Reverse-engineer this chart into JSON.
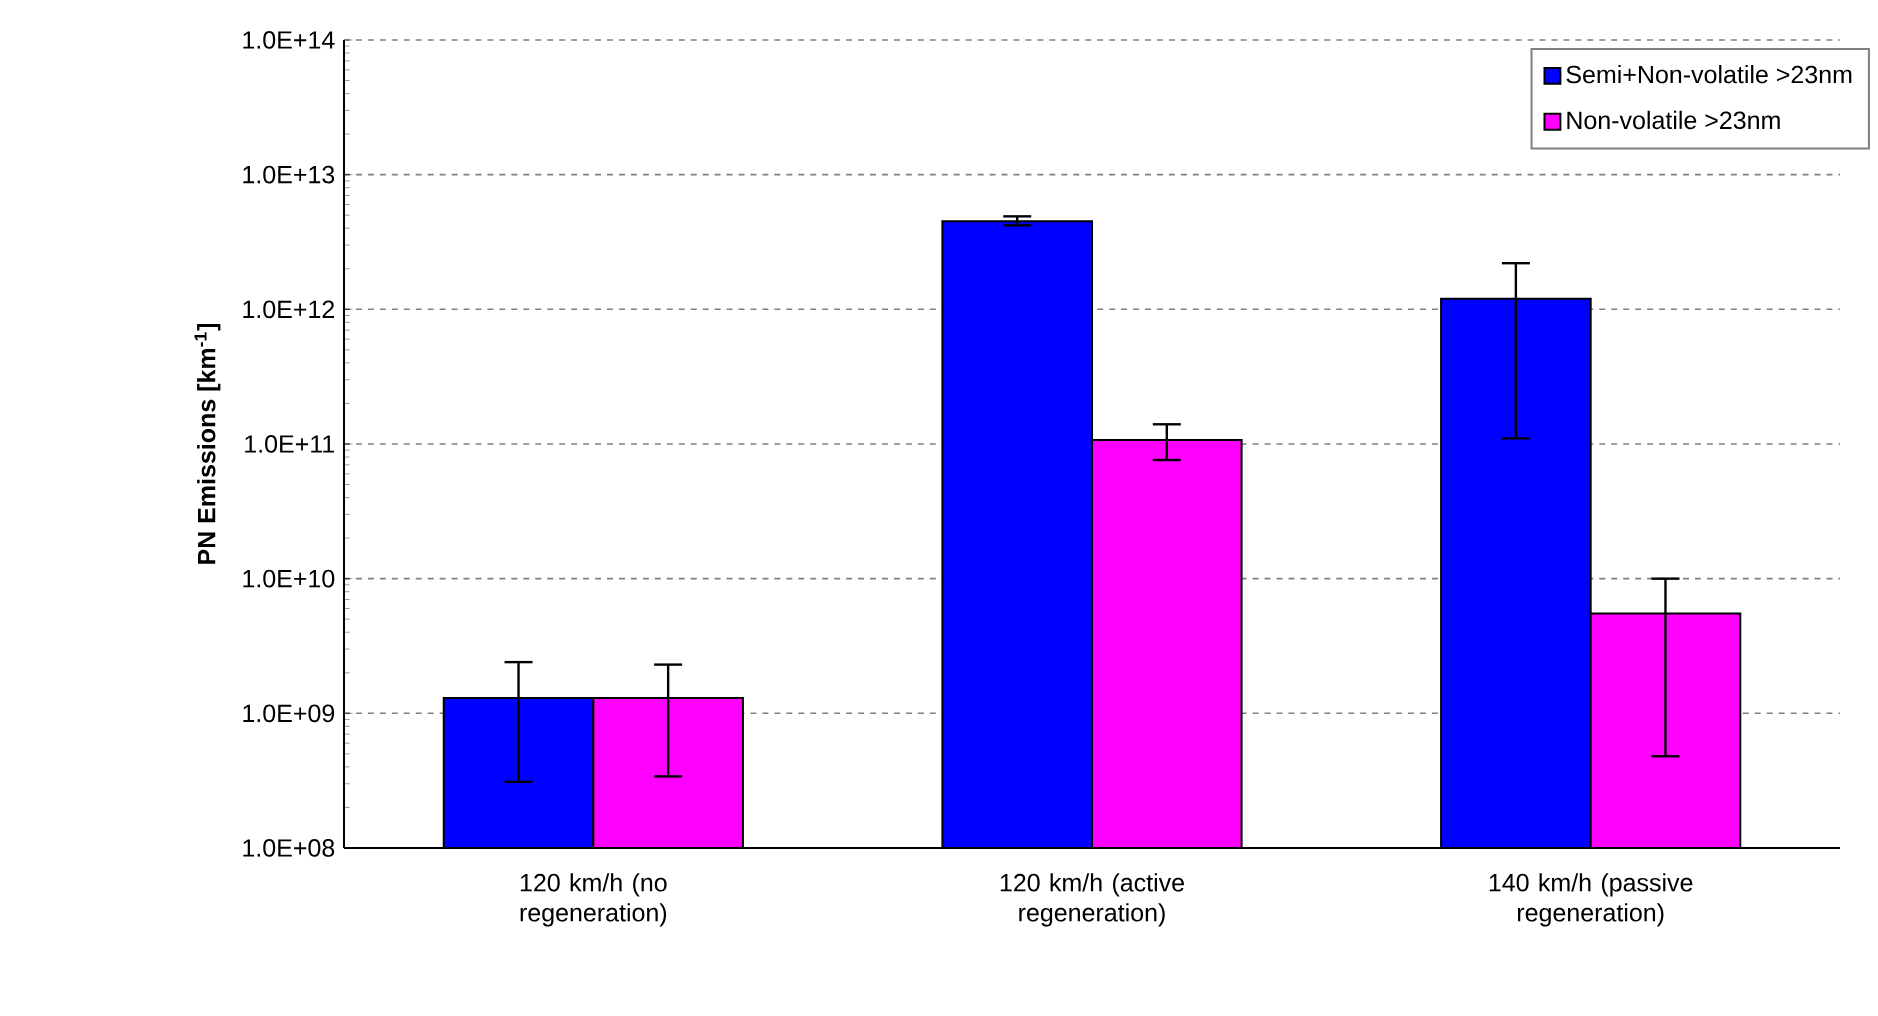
{
  "chart_data": {
    "type": "bar",
    "ylabel": "PN Emissions [km$^{-1}$]",
    "categories": [
      "120 km/h (no regeneration)",
      "120 km/h (active regeneration)",
      "140 km/h (passive regeneration)"
    ],
    "series": [
      {
        "name": "Semi+Non-volatile >23nm",
        "color": "#0000ff",
        "values": [
          1300000000.0,
          4500000000000.0,
          1200000000000.0
        ],
        "errors": [
          [
            310000000.0,
            2400000000.0
          ],
          [
            4200000000000.0,
            4900000000000.0
          ],
          [
            110000000000.0,
            2200000000000.0
          ]
        ]
      },
      {
        "name": "Non-volatile >23nm",
        "color": "#ff00ff",
        "values": [
          1300000000.0,
          107000000000.0,
          5500000000.0
        ],
        "errors": [
          [
            340000000.0,
            2300000000.0
          ],
          [
            76000000000.0,
            140000000000.0
          ],
          [
            480000000.0,
            10000000000.0
          ]
        ]
      }
    ],
    "log": "y",
    "ylim": [
      100000000.0,
      100000000000000.0
    ],
    "yticks": [
      {
        "value": 100000000.0,
        "label": "1.0E+08"
      },
      {
        "value": 1000000000.0,
        "label": "1.0E+09"
      },
      {
        "value": 10000000000.0,
        "label": "1.0E+10"
      },
      {
        "value": 100000000000.0,
        "label": "1.0E+11"
      },
      {
        "value": 1000000000000.0,
        "label": "1.0E+12"
      },
      {
        "value": 10000000000000.0,
        "label": "1.0E+13"
      },
      {
        "value": 100000000000000.0,
        "label": "1.0E+14"
      }
    ],
    "grid": "y",
    "legend": "top right"
  }
}
